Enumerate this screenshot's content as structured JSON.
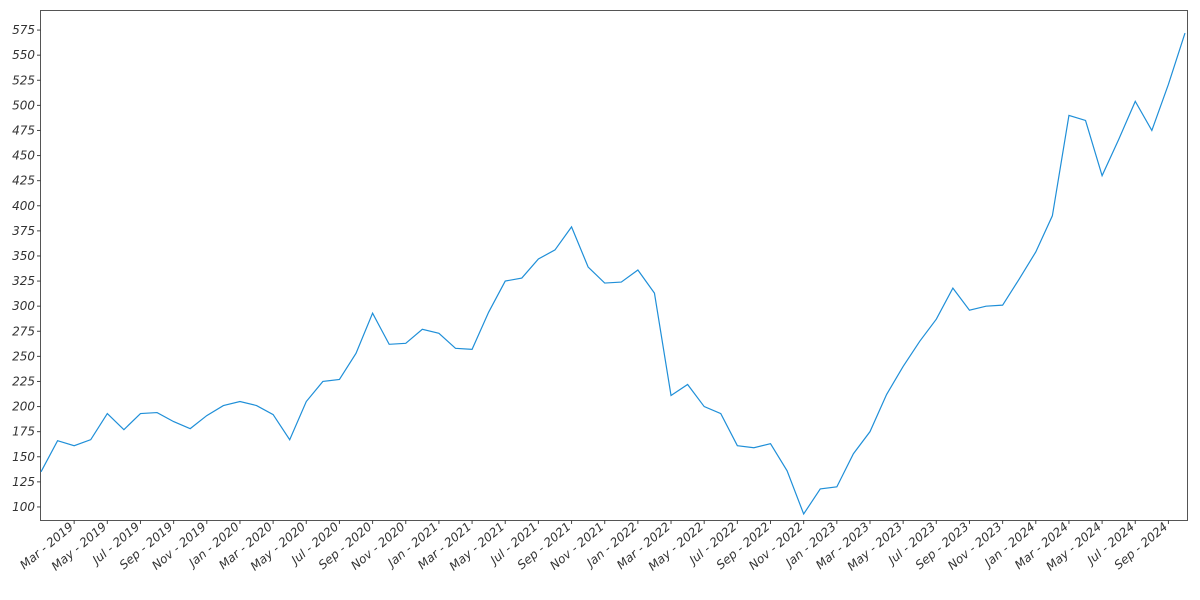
{
  "chart_data": {
    "type": "line",
    "categories": [
      null,
      null,
      "Mar - 2019",
      null,
      "May - 2019",
      null,
      "Jul - 2019",
      null,
      "Sep - 2019",
      null,
      "Nov - 2019",
      null,
      "Jan - 2020",
      null,
      "Mar - 2020",
      null,
      "May - 2020",
      null,
      "Jul - 2020",
      null,
      "Sep - 2020",
      null,
      "Nov - 2020",
      null,
      "Jan - 2021",
      null,
      "Mar - 2021",
      null,
      "May - 2021",
      null,
      "Jul - 2021",
      null,
      "Sep - 2021",
      null,
      "Nov - 2021",
      null,
      "Jan - 2022",
      null,
      "Mar - 2022",
      null,
      "May - 2022",
      null,
      "Jul - 2022",
      null,
      "Sep - 2022",
      null,
      "Nov - 2022",
      null,
      "Jan - 2023",
      null,
      "Mar - 2023",
      null,
      "May - 2023",
      null,
      "Jul - 2023",
      null,
      "Sep - 2023",
      null,
      "Nov - 2023",
      null,
      "Jan - 2024",
      null,
      "Mar - 2024",
      null,
      "May - 2024",
      null,
      "Jul - 2024",
      null,
      "Sep - 2024",
      null
    ],
    "values": [
      135,
      166,
      161,
      167,
      193,
      177,
      193,
      194,
      185,
      178,
      191,
      201,
      205,
      201,
      192,
      167,
      205,
      225,
      227,
      253,
      293,
      262,
      263,
      277,
      273,
      258,
      257,
      294,
      325,
      328,
      347,
      356,
      379,
      339,
      323,
      324,
      336,
      313,
      211,
      222,
      200,
      193,
      161,
      159,
      163,
      136,
      93,
      118,
      120,
      153,
      175,
      212,
      240,
      265,
      287,
      318,
      296,
      300,
      301,
      327,
      354,
      390,
      490,
      485,
      430,
      466,
      504,
      475,
      521,
      572
    ],
    "color": "#1f8fd8",
    "ylim": [
      87,
      595
    ],
    "yticks": [
      100,
      125,
      150,
      175,
      200,
      225,
      250,
      275,
      300,
      325,
      350,
      375,
      400,
      425,
      450,
      475,
      500,
      525,
      550,
      575
    ],
    "grid": false
  }
}
